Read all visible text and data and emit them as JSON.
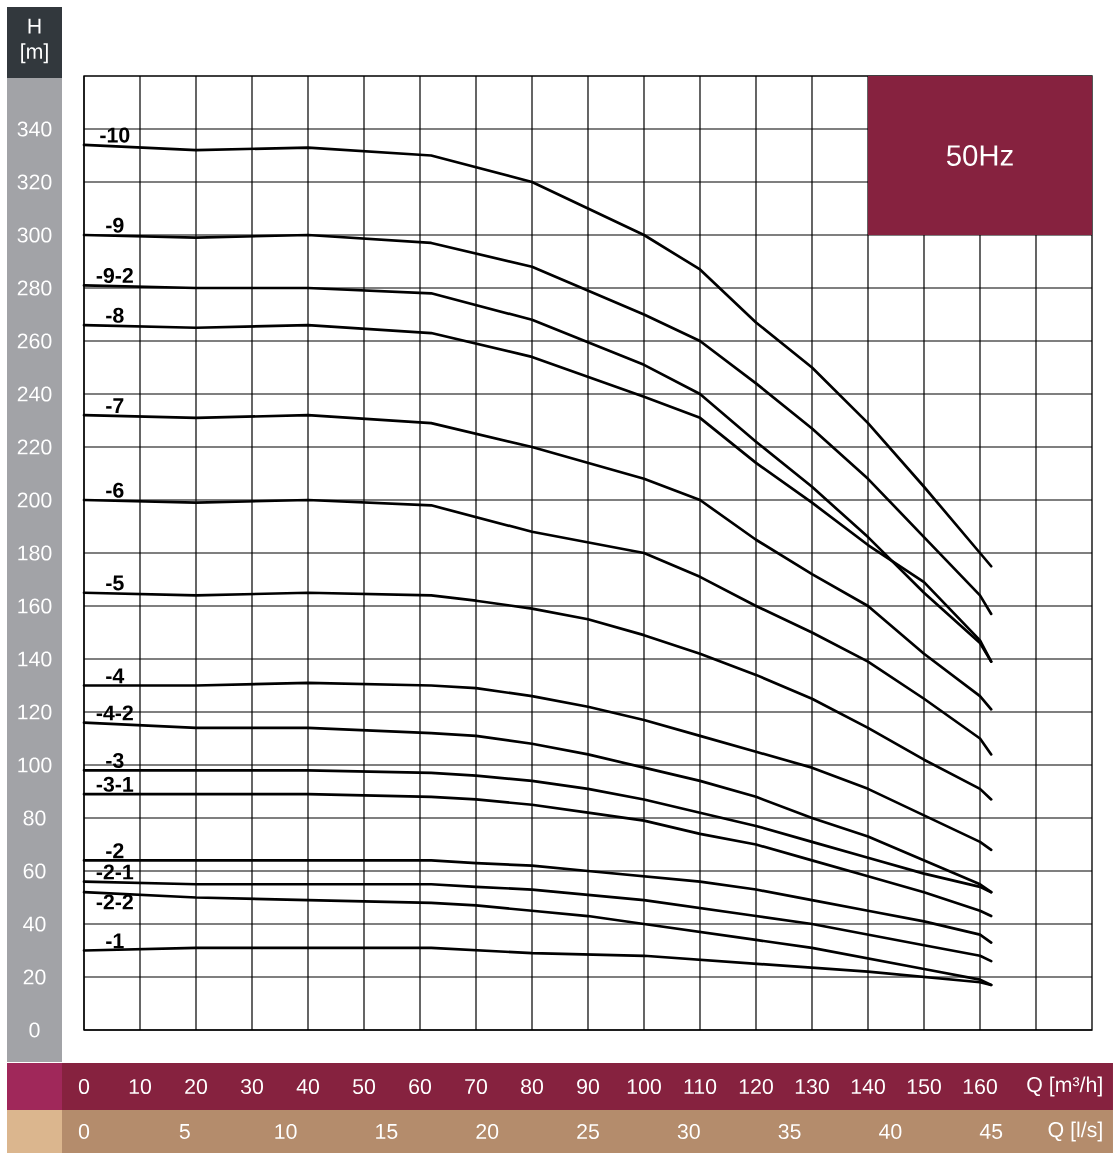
{
  "chart_data": {
    "type": "line",
    "title": "50Hz",
    "xlabel": "Q [m³/h]",
    "ylabel": "H [m]",
    "x2label": "Q [l/s]",
    "xlim": [
      0,
      180
    ],
    "xticks": [
      0,
      10,
      20,
      30,
      40,
      50,
      60,
      70,
      80,
      90,
      100,
      110,
      120,
      130,
      140,
      150,
      160,
      {
        "value": 170,
        "label": null
      }
    ],
    "x2lim": [
      0,
      50
    ],
    "x2ticks": [
      0,
      5,
      10,
      15,
      20,
      25,
      30,
      35,
      40,
      45
    ],
    "ylim": [
      0,
      360
    ],
    "yticks": [
      0,
      20,
      40,
      60,
      80,
      100,
      120,
      140,
      160,
      180,
      200,
      220,
      240,
      260,
      280,
      300,
      320,
      340
    ],
    "grid": true,
    "series": [
      {
        "name": "-10",
        "color": "#000000",
        "x": [
          0,
          20,
          40,
          62,
          80,
          100,
          110,
          120,
          130,
          140,
          150,
          160,
          162
        ],
        "values": [
          334,
          332,
          333,
          330,
          320,
          300,
          287,
          267,
          250,
          229,
          205,
          180,
          175
        ]
      },
      {
        "name": "-9",
        "color": "#000000",
        "x": [
          0,
          20,
          40,
          62,
          80,
          100,
          110,
          120,
          130,
          140,
          150,
          160,
          162
        ],
        "values": [
          300,
          299,
          300,
          297,
          288,
          270,
          260,
          244,
          227,
          208,
          186,
          164,
          157
        ]
      },
      {
        "name": "-9-2",
        "color": "#000000",
        "x": [
          0,
          20,
          40,
          62,
          80,
          100,
          110,
          120,
          130,
          140,
          150,
          160,
          162
        ],
        "values": [
          281,
          280,
          280,
          278,
          268,
          251,
          240,
          222,
          205,
          186,
          165,
          146,
          139
        ]
      },
      {
        "name": "-8",
        "color": "#000000",
        "x": [
          0,
          20,
          40,
          62,
          80,
          100,
          110,
          120,
          130,
          140,
          150,
          160,
          162
        ],
        "values": [
          266,
          265,
          266,
          263,
          254,
          239,
          231,
          214,
          199,
          183,
          169,
          147,
          139
        ]
      },
      {
        "name": "-7",
        "color": "#000000",
        "x": [
          0,
          20,
          40,
          62,
          80,
          100,
          110,
          120,
          130,
          140,
          150,
          160,
          162
        ],
        "values": [
          232,
          231,
          232,
          229,
          220,
          208,
          200,
          185,
          172,
          160,
          142,
          126,
          121
        ]
      },
      {
        "name": "-6",
        "color": "#000000",
        "x": [
          0,
          20,
          40,
          62,
          80,
          100,
          110,
          120,
          130,
          140,
          150,
          160,
          162
        ],
        "values": [
          200,
          199,
          200,
          198,
          188,
          180,
          171,
          160,
          150,
          139,
          125,
          110,
          104
        ]
      },
      {
        "name": "-5",
        "color": "#000000",
        "x": [
          0,
          20,
          40,
          62,
          70,
          80,
          90,
          100,
          110,
          120,
          130,
          140,
          150,
          160,
          162
        ],
        "values": [
          165,
          164,
          165,
          164,
          162,
          159,
          155,
          149,
          142,
          134,
          125,
          114,
          102,
          91,
          87
        ]
      },
      {
        "name": "-4",
        "color": "#000000",
        "x": [
          0,
          20,
          40,
          62,
          70,
          80,
          90,
          100,
          110,
          120,
          130,
          140,
          150,
          160,
          162
        ],
        "values": [
          130,
          130,
          131,
          130,
          129,
          126,
          122,
          117,
          111,
          105,
          99,
          91,
          81,
          71,
          68
        ]
      },
      {
        "name": "-4-2",
        "color": "#000000",
        "x": [
          0,
          20,
          40,
          62,
          70,
          80,
          90,
          100,
          110,
          120,
          130,
          140,
          150,
          160,
          162
        ],
        "values": [
          116,
          114,
          114,
          112,
          111,
          108,
          104,
          99,
          94,
          88,
          80,
          73,
          64,
          55,
          52
        ]
      },
      {
        "name": "-3",
        "color": "#000000",
        "x": [
          0,
          20,
          40,
          62,
          70,
          80,
          90,
          100,
          110,
          120,
          130,
          140,
          150,
          160,
          162
        ],
        "values": [
          98,
          98,
          98,
          97,
          96,
          94,
          91,
          87,
          82,
          77,
          71,
          65,
          59,
          54,
          52
        ]
      },
      {
        "name": "-3-1",
        "color": "#000000",
        "x": [
          0,
          20,
          40,
          62,
          70,
          80,
          90,
          100,
          110,
          120,
          130,
          140,
          150,
          160,
          162
        ],
        "values": [
          89,
          89,
          89,
          88,
          87,
          85,
          82,
          79,
          74,
          70,
          64,
          58,
          52,
          45,
          43
        ]
      },
      {
        "name": "-2",
        "color": "#000000",
        "x": [
          0,
          20,
          40,
          62,
          70,
          80,
          90,
          100,
          110,
          120,
          130,
          140,
          150,
          160,
          162
        ],
        "values": [
          64,
          64,
          64,
          64,
          63,
          62,
          60,
          58,
          56,
          53,
          49,
          45,
          41,
          36,
          33
        ]
      },
      {
        "name": "-2-1",
        "color": "#000000",
        "x": [
          0,
          20,
          40,
          62,
          70,
          80,
          90,
          100,
          110,
          120,
          130,
          140,
          150,
          160,
          162
        ],
        "values": [
          56,
          55,
          55,
          55,
          54,
          53,
          51,
          49,
          46,
          43,
          40,
          36,
          32,
          28,
          26
        ]
      },
      {
        "name": "-2-2",
        "color": "#000000",
        "x": [
          0,
          20,
          40,
          62,
          70,
          80,
          90,
          100,
          110,
          120,
          130,
          140,
          150,
          160,
          162
        ],
        "values": [
          52,
          50,
          49,
          48,
          47,
          45,
          43,
          40,
          37,
          34,
          31,
          27,
          23,
          19,
          17
        ]
      },
      {
        "name": "-1",
        "color": "#000000",
        "x": [
          0,
          20,
          40,
          62,
          80,
          100,
          120,
          140,
          160,
          162
        ],
        "values": [
          30,
          31,
          31,
          31,
          29,
          28,
          25,
          22,
          18,
          17
        ]
      }
    ]
  }
}
